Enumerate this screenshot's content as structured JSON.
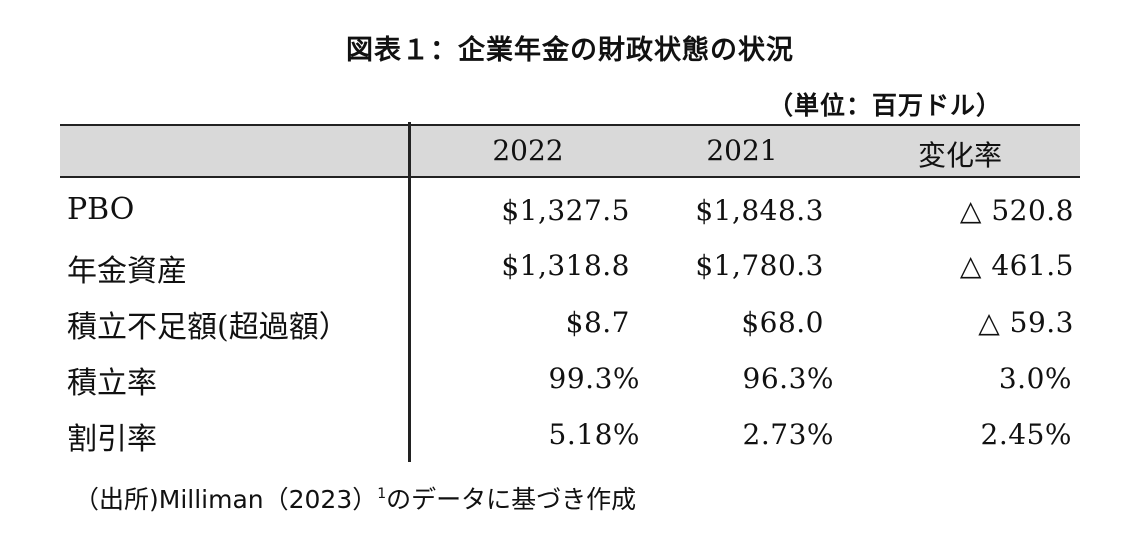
{
  "title": "図表１：企業年金の財政状態の状況",
  "unit": "（単位：百万ドル）",
  "table": {
    "columns": [
      "2022",
      "2021",
      "変化率"
    ],
    "rows": [
      {
        "label": "PBO",
        "cells": [
          "$1,327.5",
          "$1,848.3",
          "△ 520.8"
        ]
      },
      {
        "label": "年金資産",
        "cells": [
          "$1,318.8",
          "$1,780.3",
          "△ 461.5"
        ]
      },
      {
        "label": "積立不足額(超過額）",
        "cells": [
          "$8.7",
          "$68.0",
          "△ 59.3"
        ]
      },
      {
        "label": "積立率",
        "cells": [
          "99.3%",
          "96.3%",
          "3.0%"
        ]
      },
      {
        "label": "割引率",
        "cells": [
          "5.18%",
          "2.73%",
          "2.45%"
        ]
      }
    ]
  },
  "source": {
    "prefix": "（出所)Milliman（2023）",
    "note": "1",
    "suffix": "のデータに基づき作成"
  }
}
